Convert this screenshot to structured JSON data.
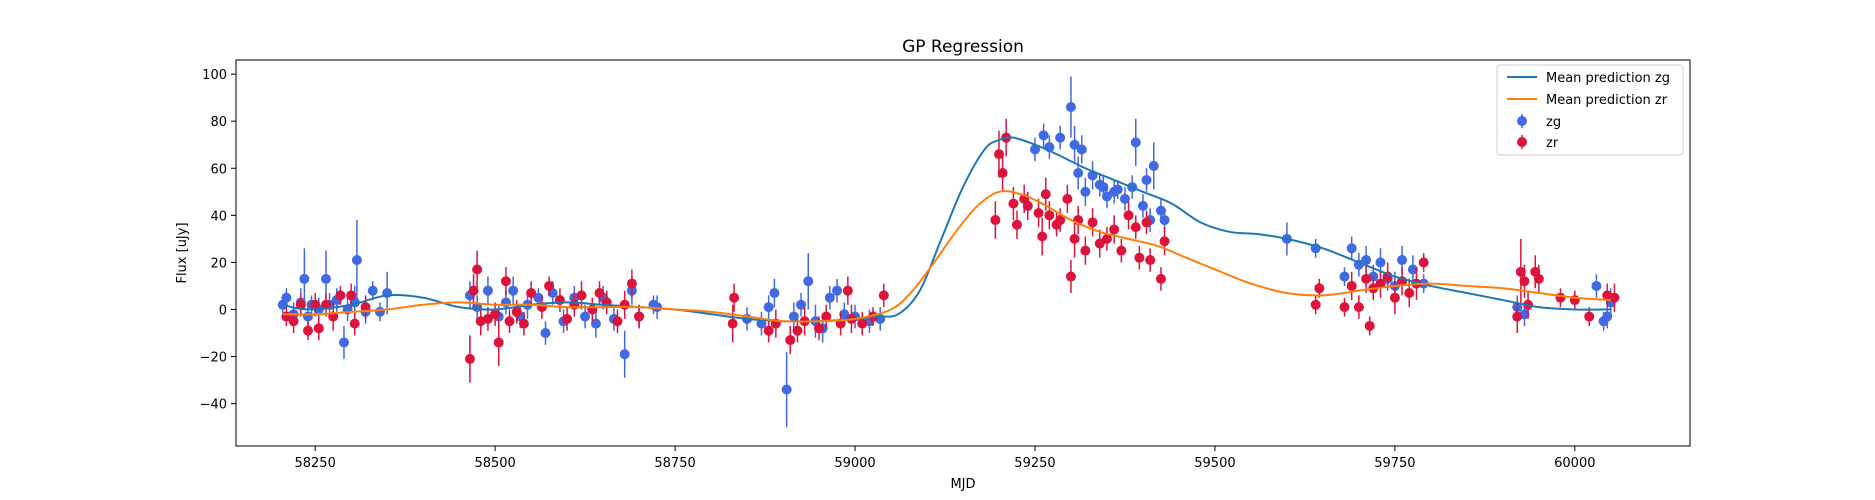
{
  "chart_data": {
    "type": "scatter",
    "title": "GP Regression",
    "xlabel": "MJD",
    "ylabel": "Flux [uJy]",
    "xlim": [
      58140,
      60160
    ],
    "ylim": [
      -58,
      106
    ],
    "xticks": [
      58250,
      58500,
      58750,
      59000,
      59250,
      59500,
      59750,
      60000
    ],
    "yticks": [
      -40,
      -20,
      0,
      20,
      40,
      60,
      80,
      100
    ],
    "grid": false,
    "legend_position": "top-right",
    "colors": {
      "zg_points": "#4169e1",
      "zr_points": "#dc143c",
      "zg_line": "#1f77b4",
      "zr_line": "#ff7f0e"
    },
    "lines": [
      {
        "name": "Mean prediction zg",
        "color": "#1f77b4",
        "x": [
          58205,
          58240,
          58300,
          58350,
          58400,
          58450,
          58500,
          58550,
          58600,
          58650,
          58700,
          58750,
          58800,
          58850,
          58900,
          58950,
          59000,
          59030,
          59060,
          59090,
          59120,
          59150,
          59180,
          59200,
          59220,
          59250,
          59280,
          59320,
          59360,
          59400,
          59440,
          59480,
          59520,
          59560,
          59600,
          59650,
          59700,
          59750,
          59800,
          59850,
          59900,
          59950,
          60000,
          60050
        ],
        "y": [
          2,
          0,
          2,
          6,
          5,
          1,
          0,
          2,
          3,
          2,
          1,
          0,
          -2,
          -4,
          -5,
          -5,
          -4,
          -3,
          -2,
          8,
          30,
          52,
          68,
          72,
          73,
          70,
          66,
          60,
          55,
          50,
          45,
          37,
          33,
          32,
          30,
          26,
          20,
          14,
          10,
          7,
          4,
          1,
          0,
          0
        ]
      },
      {
        "name": "Mean prediction zr",
        "color": "#ff7f0e",
        "x": [
          58205,
          58250,
          58300,
          58350,
          58400,
          58450,
          58500,
          58550,
          58600,
          58650,
          58700,
          58750,
          58800,
          58850,
          58900,
          58950,
          59000,
          59050,
          59080,
          59110,
          59140,
          59170,
          59200,
          59230,
          59260,
          59300,
          59340,
          59380,
          59420,
          59460,
          59500,
          59550,
          59600,
          59650,
          59700,
          59750,
          59800,
          59850,
          59900,
          59950,
          60000,
          60050
        ],
        "y": [
          -2,
          -2,
          -1,
          0,
          2,
          3,
          2,
          2,
          1,
          1,
          1,
          0,
          -1,
          -3,
          -5,
          -5,
          -4,
          0,
          8,
          20,
          33,
          44,
          50,
          49,
          45,
          38,
          33,
          30,
          27,
          22,
          17,
          11,
          7,
          6,
          8,
          10,
          11,
          10,
          9,
          7,
          5,
          4
        ]
      }
    ],
    "series": [
      {
        "name": "zg",
        "color": "#4169e1",
        "points": [
          [
            58205,
            2,
            4
          ],
          [
            58210,
            5,
            4
          ],
          [
            58220,
            -2,
            5
          ],
          [
            58230,
            3,
            6
          ],
          [
            58235,
            13,
            13
          ],
          [
            58240,
            -3,
            6
          ],
          [
            58245,
            2,
            4
          ],
          [
            58255,
            0,
            5
          ],
          [
            58265,
            13,
            12
          ],
          [
            58270,
            2,
            5
          ],
          [
            58280,
            4,
            5
          ],
          [
            58290,
            -14,
            7
          ],
          [
            58295,
            0,
            5
          ],
          [
            58305,
            3,
            7
          ],
          [
            58308,
            21,
            17
          ],
          [
            58320,
            -1,
            5
          ],
          [
            58330,
            8,
            4
          ],
          [
            58340,
            -1,
            4
          ],
          [
            58350,
            7,
            9
          ],
          [
            58465,
            6,
            6
          ],
          [
            58475,
            1,
            5
          ],
          [
            58490,
            8,
            6
          ],
          [
            58505,
            -3,
            5
          ],
          [
            58515,
            3,
            5
          ],
          [
            58525,
            8,
            6
          ],
          [
            58535,
            -3,
            5
          ],
          [
            58545,
            2,
            6
          ],
          [
            58560,
            5,
            4
          ],
          [
            58570,
            -10,
            5
          ],
          [
            58580,
            7,
            5
          ],
          [
            58595,
            -5,
            5
          ],
          [
            58610,
            5,
            5
          ],
          [
            58625,
            -3,
            5
          ],
          [
            58640,
            -6,
            6
          ],
          [
            58650,
            5,
            5
          ],
          [
            58665,
            -4,
            5
          ],
          [
            58680,
            -19,
            10
          ],
          [
            58690,
            8,
            6
          ],
          [
            58700,
            -3,
            5
          ],
          [
            58720,
            2,
            4
          ],
          [
            58725,
            1,
            5
          ],
          [
            58850,
            -4,
            5
          ],
          [
            58870,
            -6,
            5
          ],
          [
            58880,
            1,
            5
          ],
          [
            58888,
            7,
            6
          ],
          [
            58905,
            -34,
            16
          ],
          [
            58915,
            -3,
            6
          ],
          [
            58925,
            2,
            5
          ],
          [
            58935,
            12,
            12
          ],
          [
            58945,
            -5,
            7
          ],
          [
            58955,
            -8,
            6
          ],
          [
            58965,
            5,
            5
          ],
          [
            58975,
            8,
            5
          ],
          [
            58985,
            -2,
            5
          ],
          [
            59000,
            -3,
            5
          ],
          [
            59020,
            -5,
            5
          ],
          [
            59035,
            -4,
            5
          ],
          [
            59250,
            68,
            5
          ],
          [
            59262,
            74,
            5
          ],
          [
            59270,
            69,
            5
          ],
          [
            59285,
            73,
            5
          ],
          [
            59300,
            86,
            13
          ],
          [
            59305,
            70,
            8
          ],
          [
            59310,
            58,
            7
          ],
          [
            59315,
            68,
            6
          ],
          [
            59320,
            50,
            6
          ],
          [
            59330,
            57,
            6
          ],
          [
            59340,
            53,
            5
          ],
          [
            59345,
            52,
            5
          ],
          [
            59350,
            48,
            5
          ],
          [
            59360,
            50,
            5
          ],
          [
            59365,
            51,
            4
          ],
          [
            59375,
            47,
            5
          ],
          [
            59385,
            52,
            5
          ],
          [
            59390,
            71,
            10
          ],
          [
            59400,
            44,
            5
          ],
          [
            59405,
            55,
            5
          ],
          [
            59410,
            38,
            5
          ],
          [
            59415,
            61,
            10
          ],
          [
            59425,
            42,
            5
          ],
          [
            59430,
            38,
            5
          ],
          [
            59600,
            30,
            7
          ],
          [
            59640,
            26,
            4
          ],
          [
            59680,
            14,
            4
          ],
          [
            59690,
            26,
            5
          ],
          [
            59700,
            19,
            5
          ],
          [
            59710,
            21,
            6
          ],
          [
            59720,
            14,
            5
          ],
          [
            59730,
            20,
            6
          ],
          [
            59740,
            13,
            4
          ],
          [
            59750,
            10,
            6
          ],
          [
            59760,
            21,
            6
          ],
          [
            59775,
            17,
            6
          ],
          [
            59790,
            11,
            4
          ],
          [
            59920,
            1,
            5
          ],
          [
            59930,
            -2,
            5
          ],
          [
            60030,
            10,
            5
          ],
          [
            60040,
            -5,
            4
          ],
          [
            60045,
            -3,
            5
          ],
          [
            60050,
            3,
            6
          ]
        ]
      },
      {
        "name": "zr",
        "color": "#dc143c",
        "points": [
          [
            58210,
            -3,
            4
          ],
          [
            58220,
            -5,
            5
          ],
          [
            58230,
            2,
            5
          ],
          [
            58240,
            -9,
            4
          ],
          [
            58250,
            2,
            5
          ],
          [
            58255,
            -8,
            5
          ],
          [
            58265,
            2,
            5
          ],
          [
            58275,
            -3,
            6
          ],
          [
            58285,
            6,
            4
          ],
          [
            58300,
            6,
            5
          ],
          [
            58305,
            -6,
            5
          ],
          [
            58320,
            1,
            5
          ],
          [
            58465,
            -21,
            10
          ],
          [
            58470,
            8,
            7
          ],
          [
            58475,
            17,
            8
          ],
          [
            58480,
            -5,
            6
          ],
          [
            58490,
            -4,
            5
          ],
          [
            58500,
            -2,
            5
          ],
          [
            58505,
            -14,
            10
          ],
          [
            58515,
            12,
            6
          ],
          [
            58520,
            -5,
            5
          ],
          [
            58530,
            -1,
            5
          ],
          [
            58540,
            -6,
            5
          ],
          [
            58550,
            7,
            5
          ],
          [
            58565,
            1,
            5
          ],
          [
            58575,
            10,
            4
          ],
          [
            58590,
            4,
            5
          ],
          [
            58600,
            -4,
            5
          ],
          [
            58610,
            2,
            5
          ],
          [
            58620,
            6,
            6
          ],
          [
            58635,
            0,
            5
          ],
          [
            58645,
            7,
            5
          ],
          [
            58655,
            3,
            5
          ],
          [
            58670,
            -5,
            5
          ],
          [
            58680,
            2,
            6
          ],
          [
            58690,
            11,
            6
          ],
          [
            58700,
            -3,
            5
          ],
          [
            58830,
            -6,
            8
          ],
          [
            58832,
            5,
            6
          ],
          [
            58880,
            -9,
            5
          ],
          [
            58890,
            -6,
            6
          ],
          [
            58910,
            -13,
            6
          ],
          [
            58920,
            -9,
            5
          ],
          [
            58930,
            -5,
            6
          ],
          [
            58950,
            -8,
            5
          ],
          [
            58960,
            -3,
            5
          ],
          [
            58980,
            -6,
            5
          ],
          [
            58990,
            8,
            6
          ],
          [
            58995,
            -4,
            6
          ],
          [
            59010,
            -6,
            5
          ],
          [
            59025,
            -3,
            4
          ],
          [
            59040,
            6,
            5
          ],
          [
            59195,
            38,
            8
          ],
          [
            59200,
            66,
            10
          ],
          [
            59205,
            58,
            8
          ],
          [
            59210,
            73,
            8
          ],
          [
            59220,
            45,
            7
          ],
          [
            59225,
            36,
            6
          ],
          [
            59235,
            47,
            6
          ],
          [
            59240,
            44,
            6
          ],
          [
            59255,
            41,
            6
          ],
          [
            59260,
            31,
            8
          ],
          [
            59265,
            49,
            7
          ],
          [
            59270,
            40,
            6
          ],
          [
            59280,
            36,
            5
          ],
          [
            59285,
            38,
            5
          ],
          [
            59295,
            47,
            6
          ],
          [
            59300,
            14,
            7
          ],
          [
            59305,
            30,
            8
          ],
          [
            59310,
            38,
            6
          ],
          [
            59320,
            25,
            6
          ],
          [
            59330,
            37,
            6
          ],
          [
            59340,
            28,
            6
          ],
          [
            59350,
            30,
            5
          ],
          [
            59360,
            34,
            6
          ],
          [
            59370,
            25,
            5
          ],
          [
            59380,
            40,
            6
          ],
          [
            59390,
            35,
            5
          ],
          [
            59395,
            22,
            5
          ],
          [
            59405,
            37,
            5
          ],
          [
            59410,
            21,
            5
          ],
          [
            59425,
            13,
            5
          ],
          [
            59430,
            29,
            6
          ],
          [
            59640,
            2,
            4
          ],
          [
            59645,
            9,
            4
          ],
          [
            59680,
            1,
            4
          ],
          [
            59690,
            10,
            6
          ],
          [
            59700,
            1,
            5
          ],
          [
            59710,
            13,
            6
          ],
          [
            59715,
            -7,
            4
          ],
          [
            59720,
            9,
            5
          ],
          [
            59730,
            11,
            6
          ],
          [
            59740,
            14,
            6
          ],
          [
            59750,
            5,
            7
          ],
          [
            59760,
            12,
            6
          ],
          [
            59770,
            7,
            6
          ],
          [
            59780,
            11,
            7
          ],
          [
            59790,
            20,
            4
          ],
          [
            59920,
            -3,
            7
          ],
          [
            59925,
            16,
            14
          ],
          [
            59930,
            12,
            7
          ],
          [
            59935,
            2,
            6
          ],
          [
            59945,
            16,
            7
          ],
          [
            59950,
            13,
            6
          ],
          [
            59980,
            5,
            4
          ],
          [
            60000,
            4,
            4
          ],
          [
            60020,
            -3,
            4
          ],
          [
            60045,
            6,
            5
          ],
          [
            60055,
            5,
            6
          ]
        ]
      }
    ]
  }
}
